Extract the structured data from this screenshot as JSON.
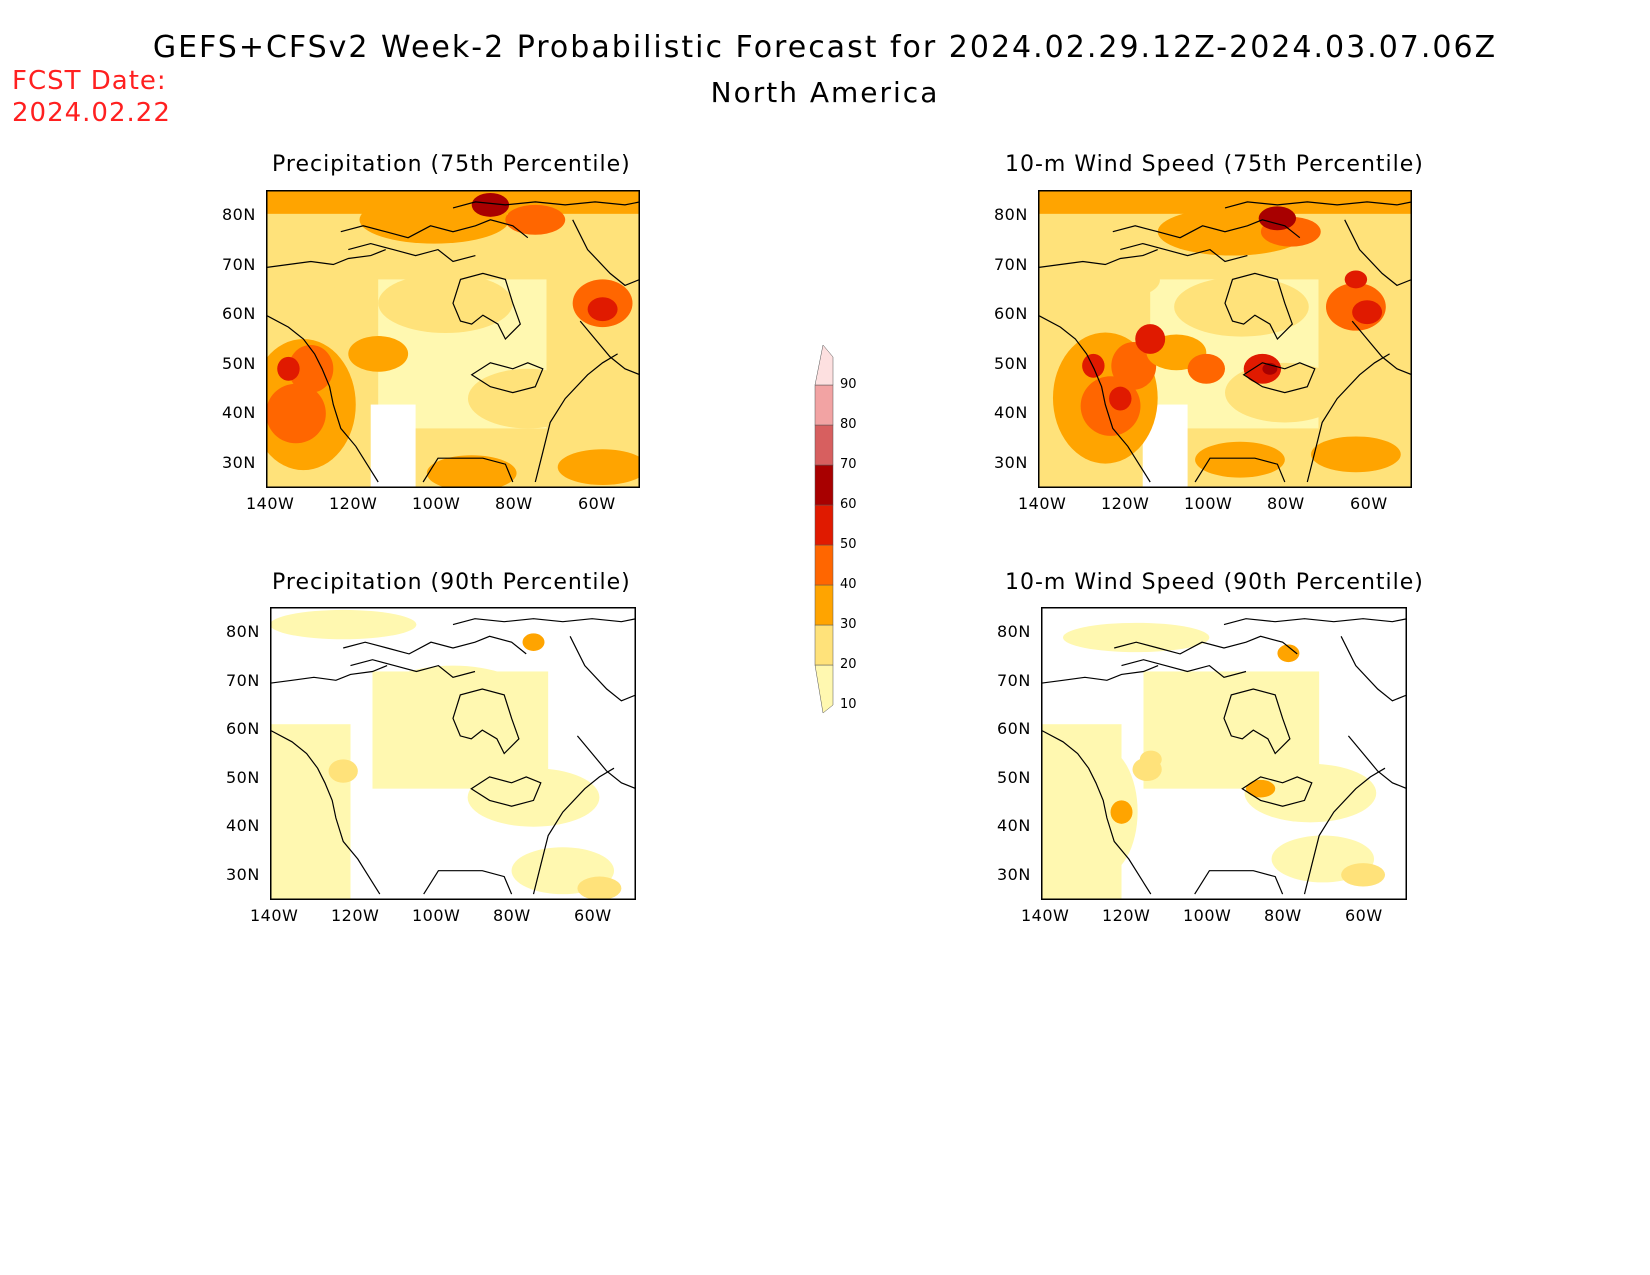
{
  "header": {
    "title": "GEFS+CFSv2 Week-2 Probabilistic Forecast for 2024.02.29.12Z-2024.03.07.06Z",
    "subtitle": "North America",
    "fcst_label": "FCST Date:",
    "fcst_date": "2024.02.22"
  },
  "axes": {
    "lat_labels": [
      "80N",
      "70N",
      "60N",
      "50N",
      "40N",
      "30N"
    ],
    "lon_labels": [
      "140W",
      "120W",
      "100W",
      "80W",
      "60W"
    ]
  },
  "panels": [
    {
      "id": "precip75",
      "title": "Precipitation (75th Percentile)",
      "level": "high"
    },
    {
      "id": "wind75",
      "title": "10-m Wind Speed (75th Percentile)",
      "level": "high"
    },
    {
      "id": "precip90",
      "title": "Precipitation (90th Percentile)",
      "level": "low"
    },
    {
      "id": "wind90",
      "title": "10-m Wind Speed (90th Percentile)",
      "level": "low"
    }
  ],
  "colorbar": {
    "levels": [
      "10",
      "20",
      "30",
      "40",
      "50",
      "60",
      "70",
      "80",
      "90"
    ],
    "colors": [
      "#fff8b0",
      "#ffe27a",
      "#ffa400",
      "#ff6600",
      "#e01a00",
      "#a80000",
      "#d75f5f",
      "#f2a3a3",
      "#fde0e0"
    ]
  }
}
